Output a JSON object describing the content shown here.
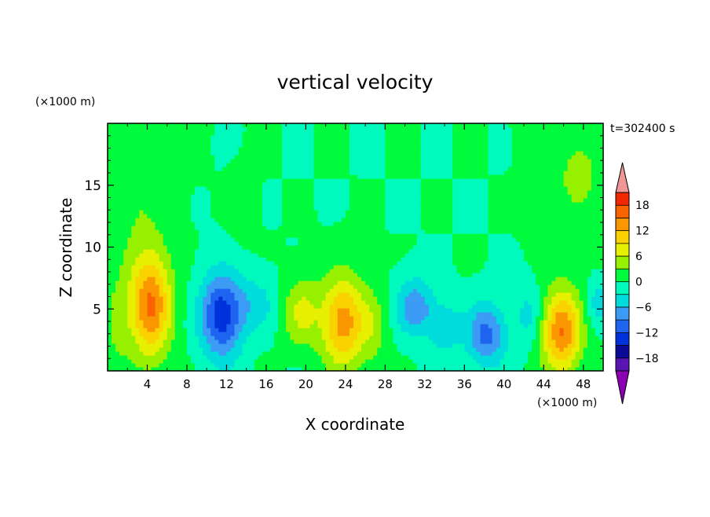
{
  "chart_data": {
    "type": "heatmap",
    "title": "vertical velocity",
    "xlabel": "X coordinate",
    "ylabel": "Z coordinate",
    "x_unit": "(×1000 m)",
    "y_unit": "(×1000 m)",
    "time_label": "t=302400 s",
    "xlim": [
      0,
      50
    ],
    "ylim": [
      0,
      20
    ],
    "x_ticks": [
      4,
      8,
      12,
      16,
      20,
      24,
      28,
      32,
      36,
      40,
      44,
      48
    ],
    "y_ticks": [
      5,
      10,
      15
    ],
    "x_tick_labels": [
      "4",
      "8",
      "12",
      "16",
      "20",
      "24",
      "28",
      "32",
      "36",
      "40",
      "44",
      "48"
    ],
    "y_tick_labels": [
      "5",
      "10",
      "15"
    ],
    "colorbar_labels": [
      "18",
      "12",
      "6",
      "0",
      "−6",
      "−12",
      "−18"
    ],
    "colorbar_label_values": [
      18,
      12,
      6,
      0,
      -6,
      -12,
      -18
    ],
    "levels": [
      -21,
      -18,
      -15,
      -12,
      -9,
      -6,
      -3,
      0,
      3,
      6,
      9,
      12,
      15,
      18,
      21
    ],
    "colors": [
      "#8c00b4",
      "#5a14b4",
      "#0a0a96",
      "#0032dc",
      "#1e64f0",
      "#3c9bf5",
      "#00dcdc",
      "#00fabe",
      "#00fa3c",
      "#96f000",
      "#e6f000",
      "#fad200",
      "#fa9600",
      "#fa6400",
      "#f02800",
      "#f09696"
    ],
    "features": [
      {
        "x": 4.3,
        "z": 5.4,
        "amp": 15.5,
        "sx": 1.5,
        "sz": 3.0
      },
      {
        "x": 11.5,
        "z": 4.5,
        "amp": -14.0,
        "sx": 1.5,
        "sz": 2.4
      },
      {
        "x": 23.8,
        "z": 4.0,
        "amp": 13.5,
        "sx": 1.6,
        "sz": 2.6
      },
      {
        "x": 19.5,
        "z": 4.8,
        "amp": 6.5,
        "sx": 1.3,
        "sz": 2.0
      },
      {
        "x": 45.8,
        "z": 3.2,
        "amp": 15.0,
        "sx": 1.4,
        "sz": 2.4
      },
      {
        "x": 31.0,
        "z": 5.2,
        "amp": -8.5,
        "sx": 1.3,
        "sz": 1.6
      },
      {
        "x": 38.2,
        "z": 3.0,
        "amp": -10.0,
        "sx": 1.4,
        "sz": 1.8
      },
      {
        "x": 34.0,
        "z": 3.5,
        "amp": -5.0,
        "sx": 1.2,
        "sz": 1.5
      },
      {
        "x": 1.0,
        "z": 4.0,
        "amp": 3.5,
        "sx": 0.9,
        "sz": 2.5
      },
      {
        "x": 15.0,
        "z": 5.5,
        "amp": -4.0,
        "sx": 1.6,
        "sz": 1.6
      },
      {
        "x": 2.5,
        "z": 15.0,
        "amp": 3.0,
        "sx": 2.5,
        "sz": 4.0
      },
      {
        "x": 47.5,
        "z": 16.0,
        "amp": 3.5,
        "sx": 2.5,
        "sz": 3.5
      },
      {
        "x": 27.0,
        "z": 3.5,
        "amp": 3.5,
        "sx": 1.0,
        "sz": 2.2
      },
      {
        "x": 42.5,
        "z": 4.5,
        "amp": -4.0,
        "sx": 1.0,
        "sz": 1.8
      },
      {
        "x": 49.5,
        "z": 5.5,
        "amp": -5.0,
        "sx": 0.8,
        "sz": 1.2
      },
      {
        "x": 13.5,
        "z": 13.0,
        "amp": 1.5,
        "sx": 1.0,
        "sz": 2.0
      }
    ],
    "grid": false
  }
}
